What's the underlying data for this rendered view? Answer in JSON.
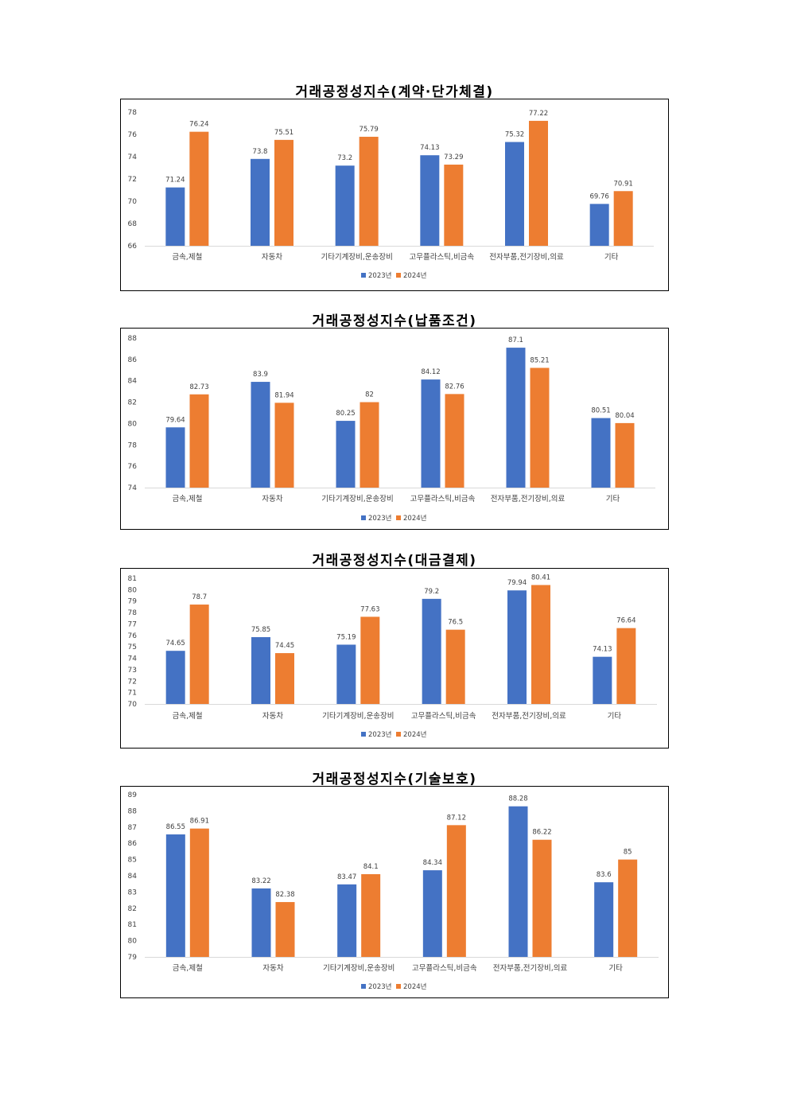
{
  "chart_data": [
    {
      "type": "bar",
      "title": "거래공정성지수(계약·단가체결)",
      "categories": [
        "금속,제철",
        "자동차",
        "기타기계장비,운송장비",
        "고무플라스틱,비금속",
        "전자부품,전기장비,의료",
        "기타"
      ],
      "series": [
        {
          "name": "2023년",
          "values": [
            71.24,
            73.8,
            73.2,
            74.13,
            75.32,
            69.76
          ]
        },
        {
          "name": "2024년",
          "values": [
            76.24,
            75.51,
            75.79,
            73.29,
            77.22,
            70.91
          ]
        }
      ],
      "ylim": [
        66,
        78
      ],
      "yticks": [
        66,
        68,
        70,
        72,
        74,
        76,
        78
      ],
      "legend": "bottom",
      "colors": [
        "#4472C4",
        "#ED7D31"
      ]
    },
    {
      "type": "bar",
      "title": "거래공정성지수(납품조건)",
      "categories": [
        "금속,제철",
        "자동차",
        "기타기계장비,운송장비",
        "고무플라스틱,비금속",
        "전자부품,전기장비,의료",
        "기타"
      ],
      "series": [
        {
          "name": "2023년",
          "values": [
            79.64,
            83.9,
            80.25,
            84.12,
            87.1,
            80.51
          ]
        },
        {
          "name": "2024년",
          "values": [
            82.73,
            81.94,
            82,
            82.76,
            85.21,
            80.04
          ]
        }
      ],
      "ylim": [
        74,
        88
      ],
      "yticks": [
        74,
        76,
        78,
        80,
        82,
        84,
        86,
        88
      ],
      "legend": "bottom",
      "colors": [
        "#4472C4",
        "#ED7D31"
      ]
    },
    {
      "type": "bar",
      "title": "거래공정성지수(대금결제)",
      "categories": [
        "금속,제철",
        "자동차",
        "기타기계장비,운송장비",
        "고무플라스틱,비금속",
        "전자부품,전기장비,의료",
        "기타"
      ],
      "series": [
        {
          "name": "2023년",
          "values": [
            74.65,
            75.85,
            75.19,
            79.2,
            79.94,
            74.13
          ]
        },
        {
          "name": "2024년",
          "values": [
            78.7,
            74.45,
            77.63,
            76.5,
            80.41,
            76.64
          ]
        }
      ],
      "ylim": [
        70,
        81
      ],
      "yticks": [
        70,
        71,
        72,
        73,
        74,
        75,
        76,
        77,
        78,
        79,
        80,
        81
      ],
      "legend": "bottom",
      "colors": [
        "#4472C4",
        "#ED7D31"
      ]
    },
    {
      "type": "bar",
      "title": "거래공정성지수(기술보호)",
      "categories": [
        "금속,제철",
        "자동차",
        "기타기계장비,운송장비",
        "고무플라스틱,비금속",
        "전자부품,전기장비,의료",
        "기타"
      ],
      "series": [
        {
          "name": "2023년",
          "values": [
            86.55,
            83.22,
            83.47,
            84.34,
            88.28,
            83.6
          ]
        },
        {
          "name": "2024년",
          "values": [
            86.91,
            82.38,
            84.1,
            87.12,
            86.22,
            85
          ]
        }
      ],
      "ylim": [
        79,
        89
      ],
      "yticks": [
        79,
        80,
        81,
        82,
        83,
        84,
        85,
        86,
        87,
        88,
        89
      ],
      "legend": "bottom",
      "colors": [
        "#4472C4",
        "#ED7D31"
      ]
    }
  ]
}
